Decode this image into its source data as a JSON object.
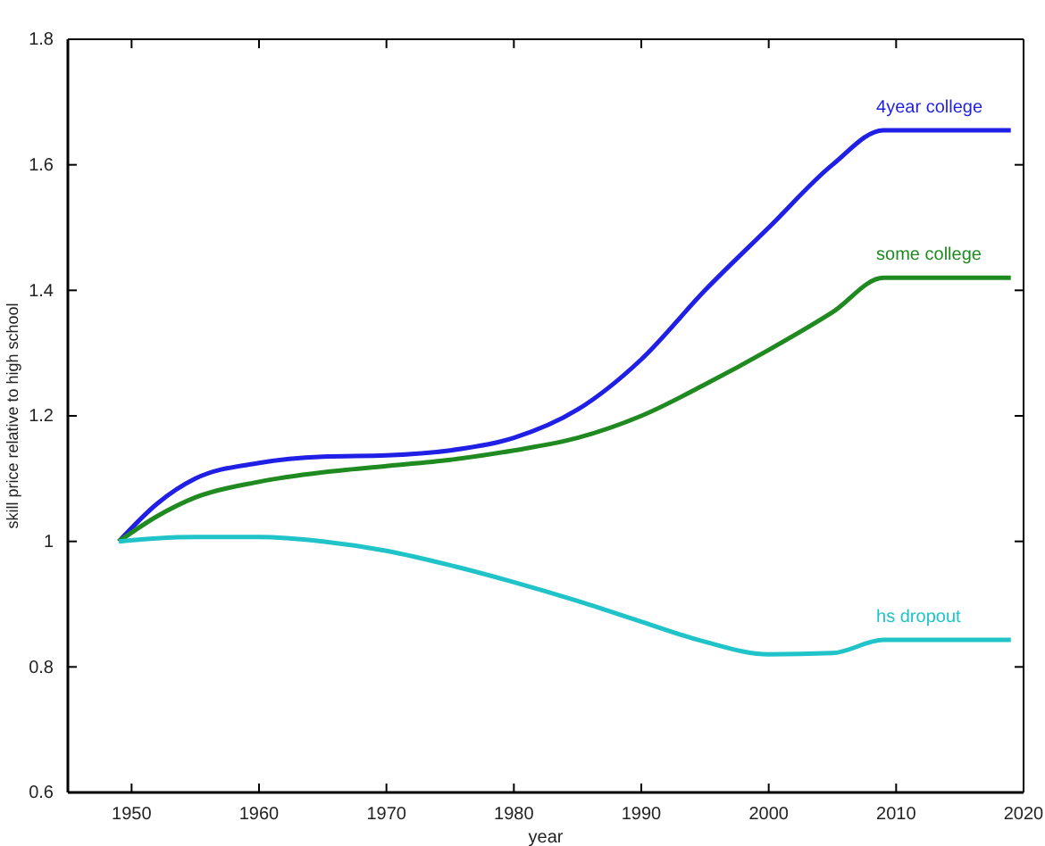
{
  "chart_data": {
    "type": "line",
    "xlabel": "year",
    "ylabel": "skill price relative to high school",
    "xlim": [
      1945,
      2020
    ],
    "xticks": [
      1950,
      1960,
      1970,
      1980,
      1990,
      2000,
      2010,
      2020
    ],
    "ylim": [
      0.6,
      1.8
    ],
    "yticks": [
      0.6,
      0.8,
      1,
      1.2,
      1.4,
      1.6,
      1.8
    ],
    "x": [
      1949,
      1952,
      1955,
      1960,
      1965,
      1970,
      1975,
      1980,
      1985,
      1990,
      1995,
      2000,
      2005,
      2009,
      2019
    ],
    "grid": false,
    "legend": false,
    "series": [
      {
        "name": "4year college",
        "color": "#1f1fe6",
        "values": [
          1.0,
          1.06,
          1.1,
          1.125,
          1.135,
          1.137,
          1.145,
          1.165,
          1.21,
          1.29,
          1.4,
          1.5,
          1.6,
          1.655,
          1.655
        ]
      },
      {
        "name": "some college",
        "color": "#1f8a1f",
        "values": [
          1.0,
          1.04,
          1.07,
          1.095,
          1.11,
          1.12,
          1.13,
          1.145,
          1.165,
          1.2,
          1.25,
          1.305,
          1.365,
          1.42,
          1.42
        ]
      },
      {
        "name": "hs dropout",
        "color": "#1fc3c8",
        "values": [
          1.0,
          1.005,
          1.007,
          1.007,
          1.0,
          0.985,
          0.962,
          0.935,
          0.905,
          0.872,
          0.84,
          0.82,
          0.822,
          0.843,
          0.843
        ]
      }
    ]
  }
}
